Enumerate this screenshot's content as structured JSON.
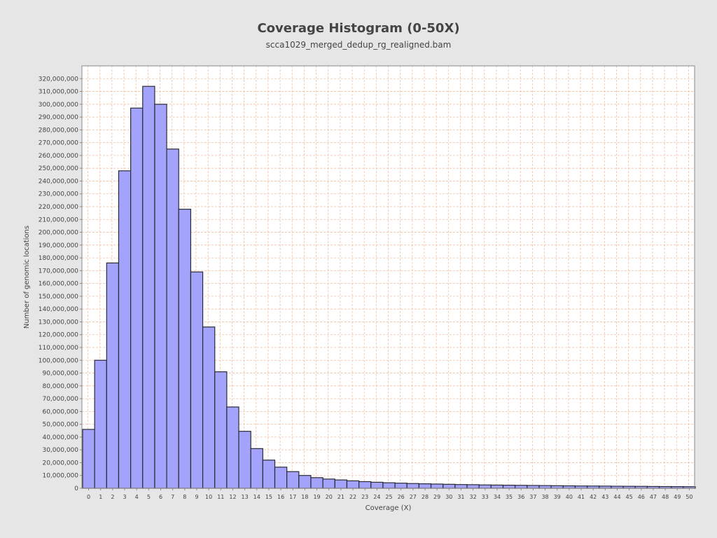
{
  "colors": {
    "background": "#e6e6e6",
    "plot_background": "#ffffff",
    "bar_fill": "#a3a3fb",
    "bar_stroke": "#2b2b36",
    "grid": "#f1c0a0",
    "text": "#444444"
  },
  "chart_data": {
    "type": "bar",
    "title": "Coverage Histogram (0-50X)",
    "subtitle": "scca1029_merged_dedup_rg_realigned.bam",
    "xlabel": "Coverage (X)",
    "ylabel": "Number of genomic locations",
    "ylim": [
      0,
      330000000
    ],
    "ytick_step": 10000000,
    "grid": true,
    "categories": [
      "0",
      "1",
      "2",
      "3",
      "4",
      "5",
      "6",
      "7",
      "8",
      "9",
      "10",
      "11",
      "12",
      "13",
      "14",
      "15",
      "16",
      "17",
      "18",
      "19",
      "20",
      "21",
      "22",
      "23",
      "24",
      "25",
      "26",
      "27",
      "28",
      "29",
      "30",
      "31",
      "32",
      "33",
      "34",
      "35",
      "36",
      "37",
      "38",
      "39",
      "40",
      "41",
      "42",
      "43",
      "44",
      "45",
      "46",
      "47",
      "48",
      "49",
      "50"
    ],
    "values": [
      46000000,
      100000000,
      176000000,
      248000000,
      297000000,
      314000000,
      300000000,
      265000000,
      218000000,
      169000000,
      126000000,
      91000000,
      63500000,
      44500000,
      31000000,
      22000000,
      16500000,
      13000000,
      10000000,
      8300000,
      7200000,
      6500000,
      5800000,
      5200000,
      4700000,
      4300000,
      4000000,
      3700000,
      3500000,
      3300000,
      3100000,
      2900000,
      2800000,
      2600000,
      2500000,
      2400000,
      2300000,
      2200000,
      2100000,
      2000000,
      1900000,
      1800000,
      1750000,
      1700000,
      1600000,
      1550000,
      1500000,
      1400000,
      1350000,
      1300000,
      1250000
    ]
  }
}
